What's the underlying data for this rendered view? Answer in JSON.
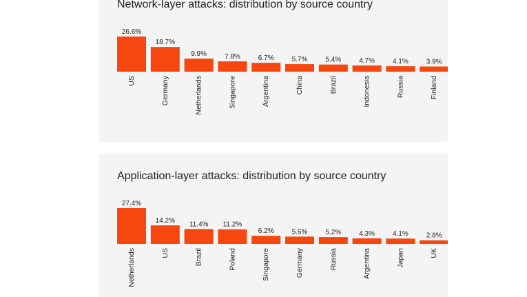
{
  "colors": {
    "bar": "#f5470f",
    "panel": "#f4f4f4",
    "text": "#222222"
  },
  "chart_data": [
    {
      "type": "bar",
      "title": "Network-layer attacks: distribution by source country",
      "categories": [
        "US",
        "Germany",
        "Netherlands",
        "Singapore",
        "Argentina",
        "China",
        "Brazil",
        "Indonesia",
        "Russia",
        "Finland"
      ],
      "values": [
        26.6,
        18.7,
        9.9,
        7.8,
        6.7,
        5.7,
        5.4,
        4.7,
        4.1,
        3.9
      ],
      "value_labels": [
        "26.6%",
        "18.7%",
        "9.9%",
        "7.8%",
        "6.7%",
        "5.7%",
        "5.4%",
        "4.7%",
        "4.1%",
        "3.9%"
      ],
      "ylim": [
        0,
        26.6
      ],
      "grid": false,
      "legend": "none"
    },
    {
      "type": "bar",
      "title": "Application-layer attacks: distribution by source country",
      "categories": [
        "Netherlands",
        "US",
        "Brazil",
        "Poland",
        "Singapore",
        "Germany",
        "Russia",
        "Argentina",
        "Japan",
        "UK"
      ],
      "values": [
        27.4,
        14.2,
        11.4,
        11.2,
        6.2,
        5.6,
        5.2,
        4.3,
        4.1,
        2.8
      ],
      "value_labels": [
        "27.4%",
        "14.2%",
        "11.4%",
        "11.2%",
        "6.2%",
        "5.6%",
        "5.2%",
        "4.3%",
        "4.1%",
        "2.8%"
      ],
      "ylim": [
        0,
        27.4
      ],
      "grid": false,
      "legend": "none"
    }
  ]
}
